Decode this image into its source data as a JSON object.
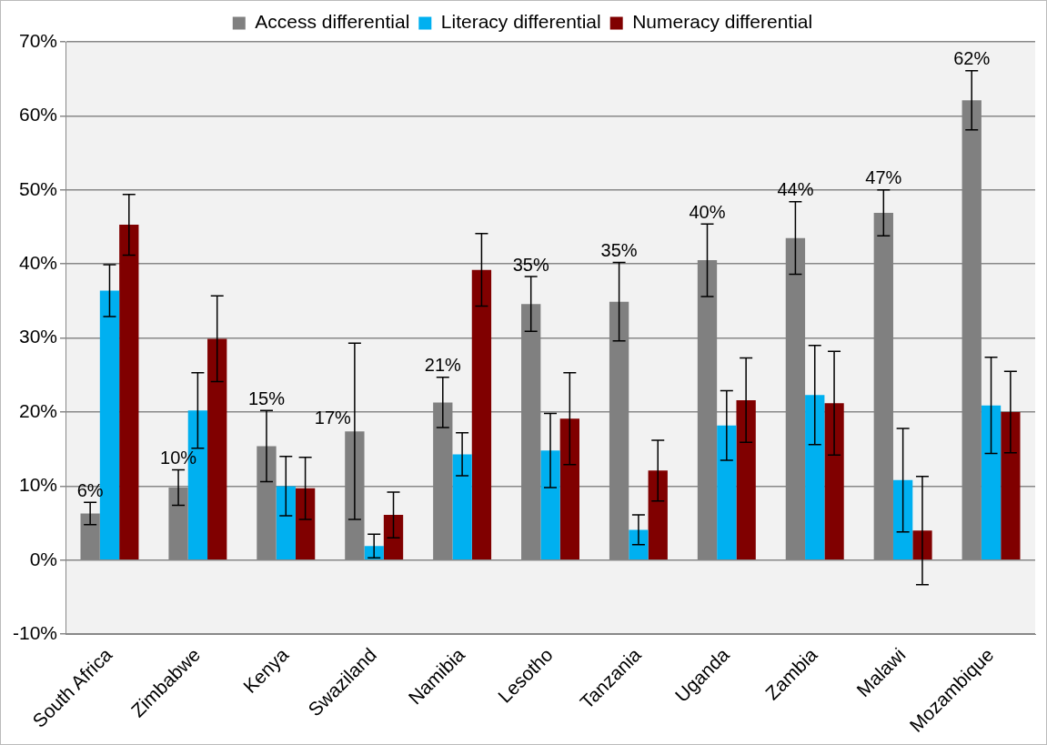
{
  "chart_data": {
    "type": "bar",
    "categories": [
      "South Africa",
      "Zimbabwe",
      "Kenya",
      "Swaziland",
      "Namibia",
      "Lesotho",
      "Tanzania",
      "Uganda",
      "Zambia",
      "Malawi",
      "Mozambique"
    ],
    "series": [
      {
        "name": "Access differential",
        "color": "#808080",
        "values": [
          6.3,
          9.8,
          15.4,
          17.4,
          21.3,
          34.6,
          34.9,
          40.5,
          43.5,
          46.9,
          62.1
        ],
        "errors": [
          1.5,
          2.4,
          4.8,
          11.9,
          3.4,
          3.7,
          5.3,
          4.9,
          4.9,
          3.1,
          4.0
        ],
        "value_labels": [
          "6%",
          "10%",
          "15%",
          "17%",
          "21%",
          "35%",
          "35%",
          "40%",
          "44%",
          "47%",
          "62%"
        ]
      },
      {
        "name": "Literacy differential",
        "color": "#00b0f0",
        "values": [
          36.4,
          20.2,
          10.0,
          1.9,
          14.3,
          14.8,
          4.1,
          18.2,
          22.3,
          10.8,
          20.9
        ],
        "errors": [
          3.5,
          5.1,
          4.0,
          1.6,
          2.9,
          5.0,
          2.0,
          4.7,
          6.7,
          7.0,
          6.5
        ]
      },
      {
        "name": "Numeracy differential",
        "color": "#800000",
        "values": [
          45.3,
          29.9,
          9.7,
          6.1,
          39.2,
          19.1,
          12.1,
          21.6,
          21.2,
          4.0,
          20.0
        ],
        "errors": [
          4.1,
          5.8,
          4.2,
          3.1,
          4.9,
          6.2,
          4.1,
          5.7,
          7.0,
          7.3,
          5.5
        ]
      }
    ],
    "ylim": [
      -10,
      70
    ],
    "yticks": [
      {
        "value": -10,
        "label": "-10%"
      },
      {
        "value": 0,
        "label": "0%"
      },
      {
        "value": 10,
        "label": "10%"
      },
      {
        "value": 20,
        "label": "20%"
      },
      {
        "value": 30,
        "label": "30%"
      },
      {
        "value": 40,
        "label": "40%"
      },
      {
        "value": 50,
        "label": "50%"
      },
      {
        "value": 60,
        "label": "60%"
      },
      {
        "value": 70,
        "label": "70%"
      }
    ],
    "grid": "y",
    "legend": "top"
  }
}
